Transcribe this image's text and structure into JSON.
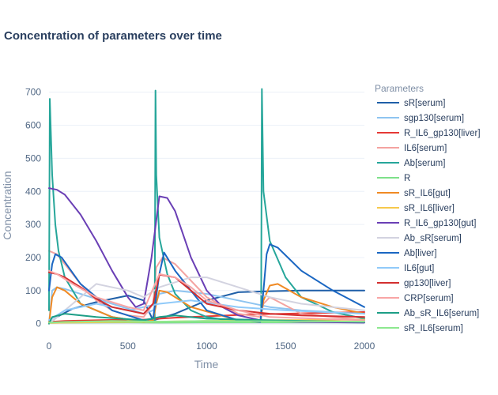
{
  "chart_data": {
    "type": "line",
    "title": "Concentration of parameters over time",
    "xlabel": "Time",
    "ylabel": "Concentration",
    "xlim": [
      0,
      2000
    ],
    "ylim": [
      -20,
      740
    ],
    "xticks": [
      0,
      500,
      1000,
      1500,
      2000
    ],
    "yticks": [
      0,
      100,
      200,
      300,
      400,
      500,
      600,
      700
    ],
    "grid": true,
    "legend": {
      "title": "Parameters",
      "position": "right"
    },
    "series": [
      {
        "name": "sR[serum]",
        "color": "#1f5fa8",
        "x": [
          0,
          50,
          150,
          300,
          500,
          600,
          660,
          700,
          800,
          1000,
          1200,
          1400,
          1600,
          1800,
          2000
        ],
        "y": [
          0,
          20,
          45,
          65,
          85,
          70,
          10,
          15,
          30,
          70,
          95,
          98,
          100,
          100,
          100
        ]
      },
      {
        "name": "sgp130[serum]",
        "color": "#8ec4f0",
        "x": [
          0,
          20,
          50,
          100,
          200,
          400,
          600,
          660,
          700,
          800,
          1000,
          1200,
          1400,
          1600,
          2000
        ],
        "y": [
          0,
          100,
          110,
          105,
          90,
          60,
          30,
          40,
          90,
          100,
          90,
          70,
          50,
          40,
          30
        ]
      },
      {
        "name": "R_IL6_gp130[liver]",
        "color": "#e53935",
        "x": [
          0,
          100,
          300,
          500,
          600,
          660,
          700,
          800,
          1000,
          1300,
          1500,
          2000
        ],
        "y": [
          5,
          8,
          10,
          12,
          12,
          14,
          15,
          18,
          22,
          28,
          30,
          35
        ]
      },
      {
        "name": "IL6[serum]",
        "color": "#f4a3a0",
        "x": [
          0,
          50,
          100,
          200,
          300,
          400,
          500,
          600,
          660,
          680,
          720,
          800,
          1000,
          1200,
          1340,
          1360,
          1400,
          1600,
          2000
        ],
        "y": [
          220,
          210,
          180,
          120,
          70,
          40,
          25,
          20,
          60,
          170,
          200,
          180,
          80,
          30,
          20,
          60,
          80,
          30,
          10
        ]
      },
      {
        "name": "Ab[serum]",
        "color": "#26a69a",
        "x": [
          0,
          5,
          20,
          40,
          60,
          100,
          200,
          400,
          600,
          665,
          670,
          675,
          680,
          700,
          750,
          800,
          900,
          1000,
          1200,
          1340,
          1345,
          1350,
          1360,
          1400,
          1500,
          1600,
          1800,
          2000
        ],
        "y": [
          40,
          680,
          450,
          300,
          220,
          140,
          60,
          20,
          5,
          5,
          5,
          705,
          450,
          260,
          150,
          90,
          40,
          20,
          5,
          5,
          5,
          710,
          400,
          250,
          140,
          80,
          35,
          15
        ]
      },
      {
        "name": "R",
        "color": "#7ee08a",
        "x": [
          0,
          100,
          500,
          700,
          1000,
          1500,
          2000
        ],
        "y": [
          2,
          3,
          4,
          3,
          4,
          4,
          5
        ]
      },
      {
        "name": "sR_IL6[gut]",
        "color": "#f08a24",
        "x": [
          0,
          20,
          50,
          100,
          200,
          400,
          600,
          660,
          680,
          700,
          750,
          900,
          1200,
          1340,
          1360,
          1400,
          1450,
          1600,
          1800,
          2000
        ],
        "y": [
          0,
          80,
          110,
          100,
          60,
          20,
          5,
          10,
          60,
          100,
          95,
          50,
          10,
          5,
          70,
          115,
          120,
          80,
          50,
          30
        ]
      },
      {
        "name": "sR_IL6[liver]",
        "color": "#f7c94c",
        "x": [
          0,
          100,
          400,
          700,
          1000,
          1400,
          2000
        ],
        "y": [
          2,
          3,
          5,
          6,
          8,
          10,
          12
        ]
      },
      {
        "name": "R_IL6_gp130[gut]",
        "color": "#6a3fb5",
        "x": [
          0,
          50,
          100,
          200,
          300,
          400,
          500,
          550,
          600,
          650,
          700,
          750,
          800,
          900,
          1000,
          1100,
          1200,
          1340,
          1400,
          1600,
          2000
        ],
        "y": [
          410,
          405,
          390,
          330,
          250,
          160,
          80,
          50,
          60,
          200,
          385,
          380,
          340,
          200,
          100,
          50,
          25,
          10,
          8,
          5,
          3
        ]
      },
      {
        "name": "Ab_sR[serum]",
        "color": "#d3d3e0",
        "x": [
          0,
          100,
          300,
          500,
          600,
          700,
          900,
          1000,
          1200,
          1400,
          1600,
          1800,
          2000
        ],
        "y": [
          0,
          40,
          120,
          100,
          80,
          110,
          140,
          140,
          110,
          80,
          60,
          50,
          40
        ]
      },
      {
        "name": "Ab[liver]",
        "color": "#1a66c2",
        "x": [
          0,
          20,
          40,
          80,
          200,
          400,
          600,
          660,
          700,
          730,
          800,
          1000,
          1200,
          1340,
          1360,
          1380,
          1400,
          1450,
          1600,
          1800,
          2000
        ],
        "y": [
          100,
          180,
          210,
          200,
          120,
          40,
          10,
          15,
          150,
          215,
          160,
          40,
          10,
          5,
          100,
          210,
          240,
          230,
          160,
          100,
          50
        ]
      },
      {
        "name": "IL6[gut]",
        "color": "#90caf9",
        "x": [
          0,
          100,
          300,
          500,
          700,
          900,
          1200,
          1500,
          2000
        ],
        "y": [
          10,
          40,
          60,
          40,
          60,
          70,
          50,
          40,
          30
        ]
      },
      {
        "name": "gp130[liver]",
        "color": "#d32f2f",
        "x": [
          0,
          50,
          100,
          200,
          300,
          400,
          500,
          600,
          660,
          700,
          800,
          900,
          1000,
          1200,
          1400,
          1600,
          2000
        ],
        "y": [
          155,
          150,
          140,
          110,
          75,
          50,
          40,
          30,
          60,
          148,
          140,
          100,
          60,
          40,
          30,
          25,
          20
        ]
      },
      {
        "name": "CRP[serum]",
        "color": "#f8a5a5",
        "x": [
          0,
          50,
          150,
          300,
          500,
          600,
          700,
          800,
          900,
          1000,
          1200,
          1400,
          2000
        ],
        "y": [
          160,
          150,
          120,
          80,
          50,
          40,
          150,
          140,
          110,
          70,
          40,
          20,
          10
        ]
      },
      {
        "name": "Ab_sR_IL6[serum]",
        "color": "#1c9e86",
        "x": [
          0,
          20,
          100,
          300,
          600,
          700,
          800,
          1000,
          1400,
          2000
        ],
        "y": [
          0,
          20,
          30,
          20,
          10,
          20,
          25,
          15,
          10,
          5
        ]
      },
      {
        "name": "sR_IL6[serum]",
        "color": "#8de88f",
        "x": [
          0,
          100,
          400,
          700,
          1000,
          1500,
          2000
        ],
        "y": [
          3,
          5,
          8,
          6,
          8,
          7,
          6
        ]
      }
    ]
  }
}
